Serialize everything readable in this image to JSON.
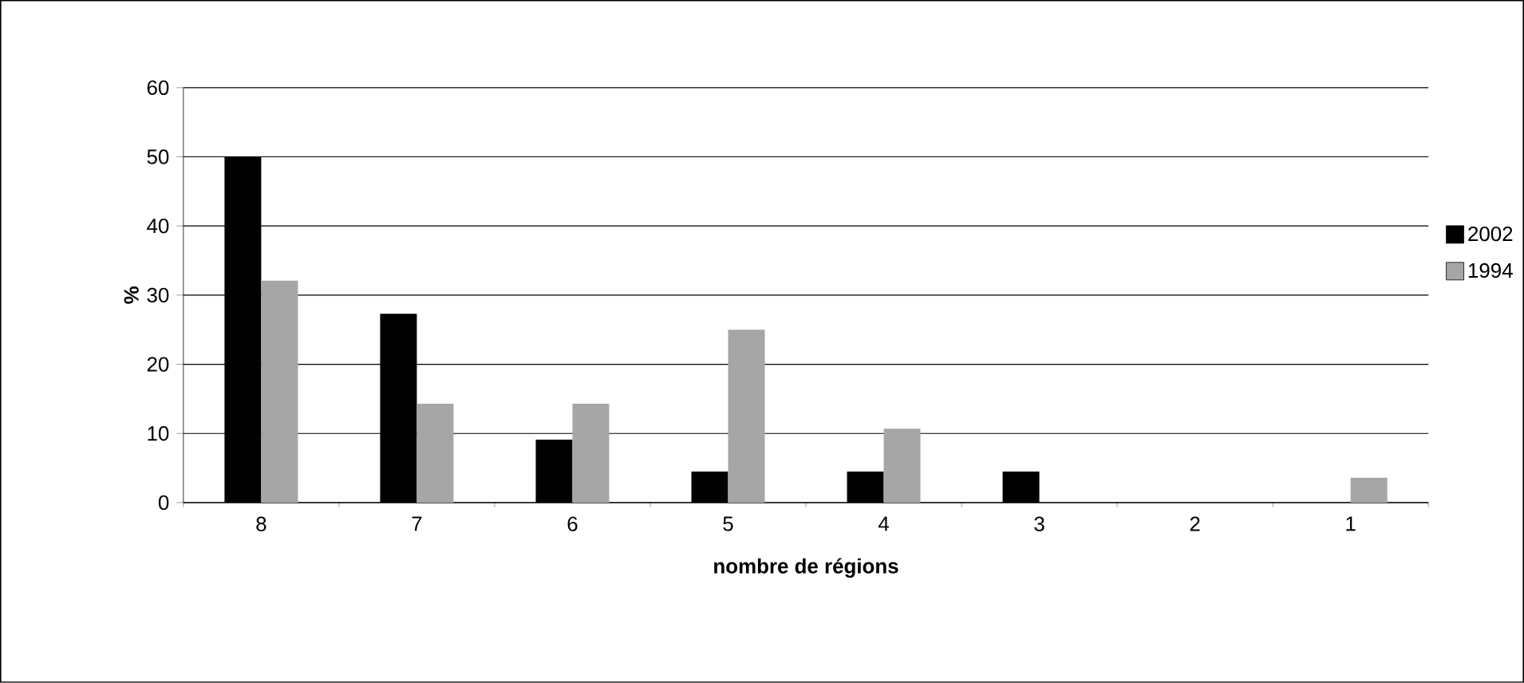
{
  "chart_data": {
    "type": "bar",
    "xlabel": "nombre de régions",
    "ylabel": "%",
    "categories": [
      "8",
      "7",
      "6",
      "5",
      "4",
      "3",
      "2",
      "1"
    ],
    "series": [
      {
        "name": "2002",
        "color": "#000000",
        "values": [
          50,
          27.3,
          9.1,
          4.5,
          4.5,
          4.5,
          0,
          0
        ]
      },
      {
        "name": "1994",
        "color": "#a6a6a6",
        "values": [
          32.1,
          14.3,
          14.3,
          25,
          10.7,
          0,
          0,
          3.6
        ]
      }
    ],
    "ylim": [
      0,
      60
    ],
    "yticks": [
      0,
      10,
      20,
      30,
      40,
      50,
      60
    ],
    "grid": "y",
    "legend": "right"
  }
}
